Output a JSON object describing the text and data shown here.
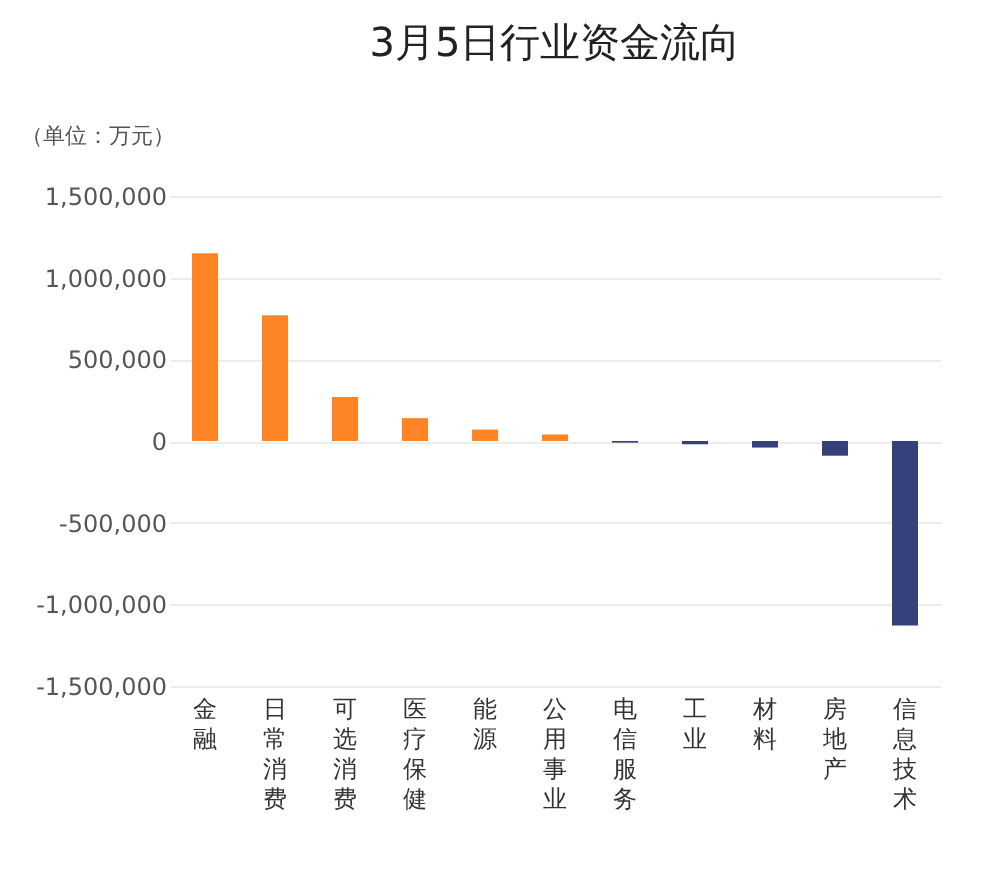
{
  "chart_data": {
    "type": "bar",
    "title": "3月5日行业资金流向",
    "ylabel": "（单位：万元）",
    "categories": [
      "金融",
      "日常消费",
      "可选消费",
      "医疗保健",
      "能源",
      "公用事业",
      "电信服务",
      "工业",
      "材料",
      "房地产",
      "信息技术"
    ],
    "values": [
      1150000,
      770000,
      270000,
      140000,
      70000,
      40000,
      -10000,
      -20000,
      -40000,
      -90000,
      -1130000
    ],
    "colors": [
      "#ff8425",
      "#ff8425",
      "#ff8425",
      "#ff8425",
      "#ff8425",
      "#ff8425",
      "#34417a",
      "#34417a",
      "#34417a",
      "#34417a",
      "#34417a"
    ],
    "ylim": [
      -1500000,
      1500000
    ],
    "yticks": [
      {
        "value": -1500000,
        "label": "-1,500,000"
      },
      {
        "value": -1000000,
        "label": "-1,000,000"
      },
      {
        "value": -500000,
        "label": "-500,000"
      },
      0,
      {
        "value": 500000,
        "label": "500,000"
      },
      {
        "value": 1000000,
        "label": "1,000,000"
      },
      {
        "value": 1500000,
        "label": "1,500,000"
      }
    ],
    "grid": "y",
    "legend": false
  }
}
